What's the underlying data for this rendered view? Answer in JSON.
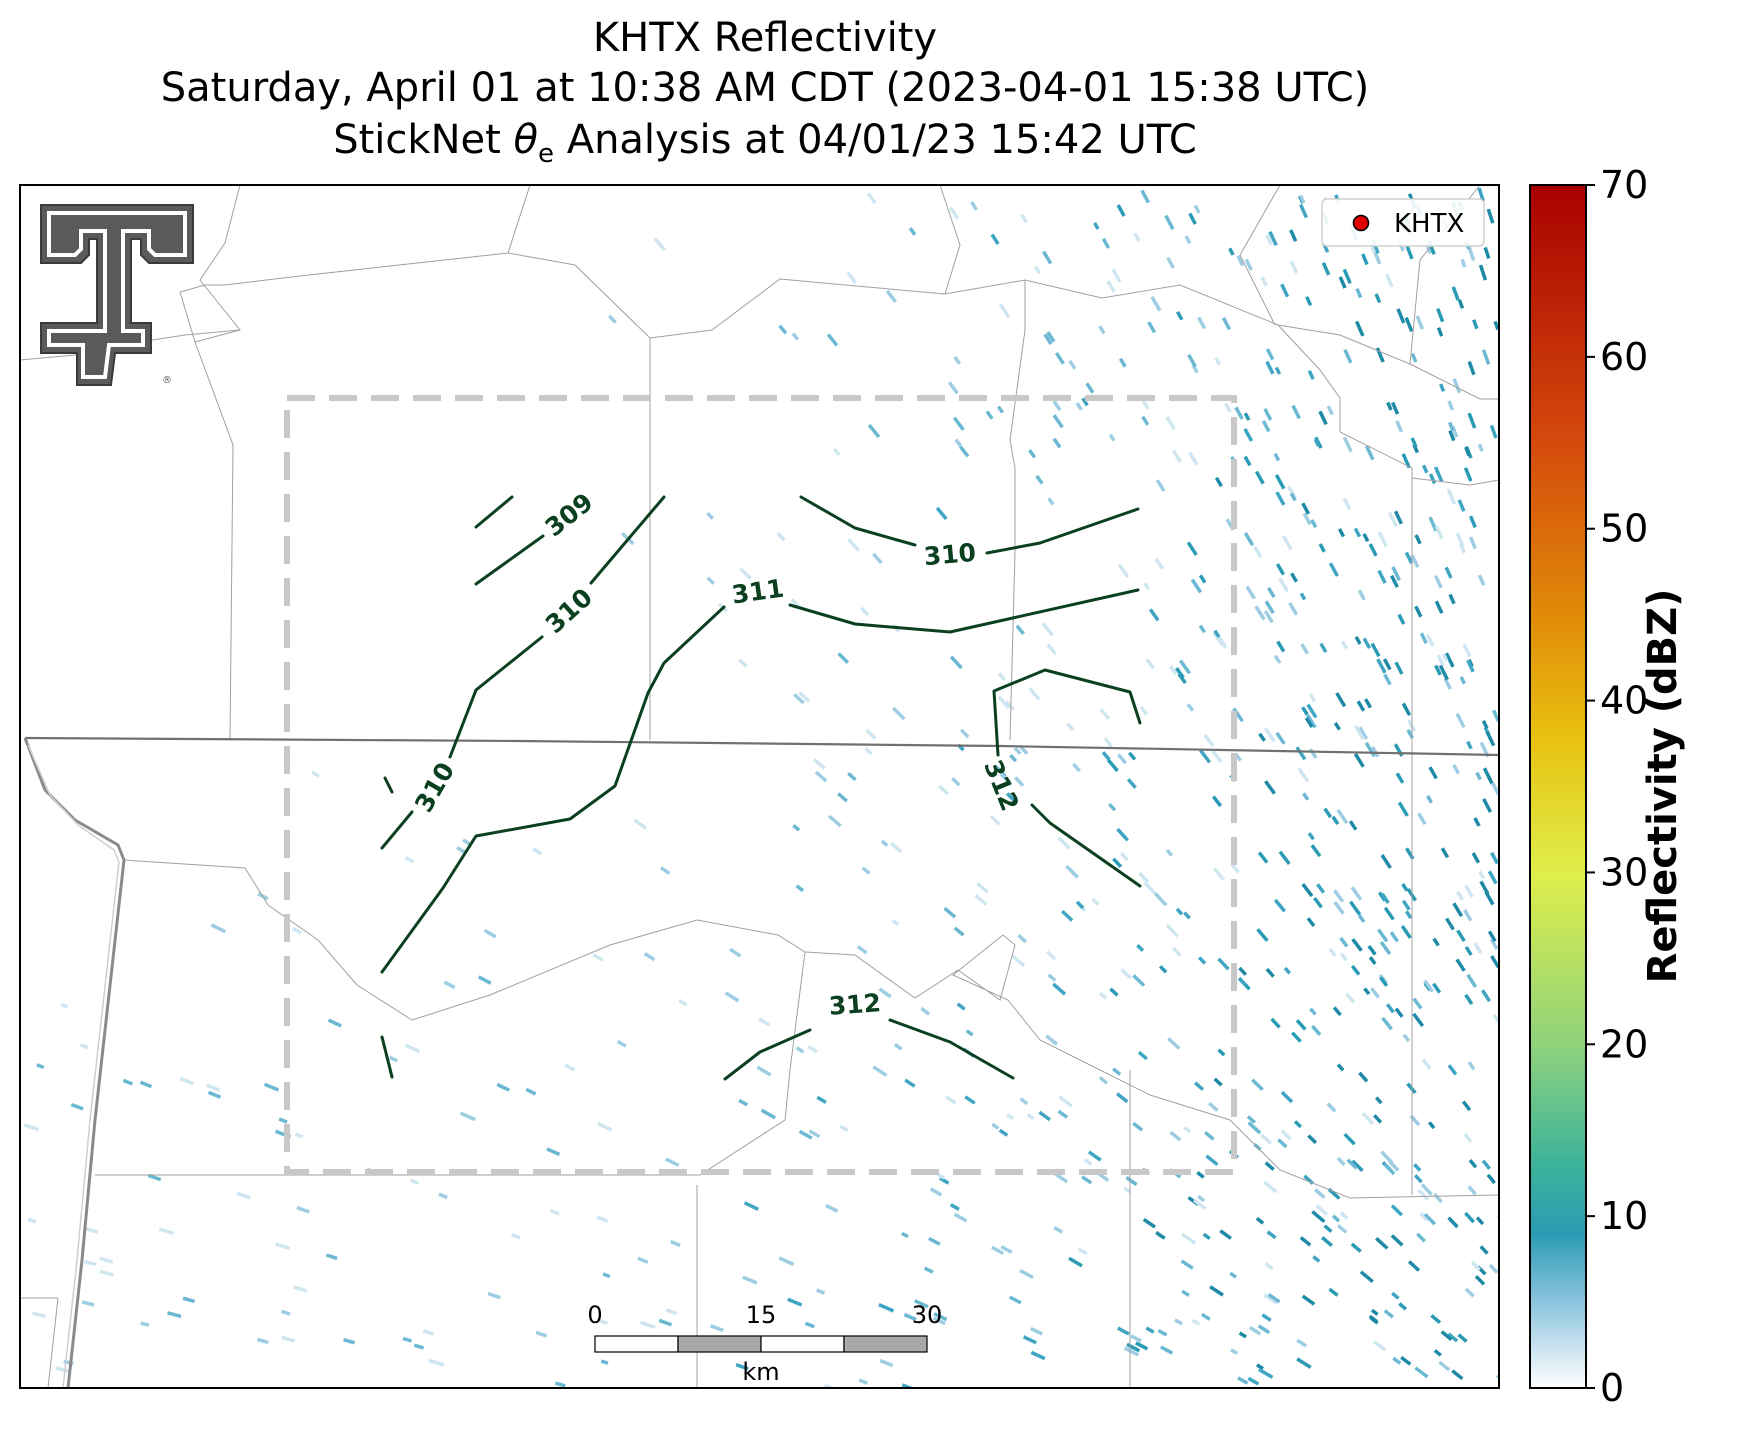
{
  "title": {
    "line1": "KHTX Reflectivity",
    "line2": "Saturday, April 01 at 10:38 AM CDT (2023-04-01 15:38 UTC)",
    "line3_prefix": "StickNet ",
    "line3_symbol": "θ",
    "line3_sub": "e",
    "line3_suffix": " Analysis at 04/01/23 15:42 UTC"
  },
  "legend": {
    "label": "KHTX",
    "marker_color": "#e00000"
  },
  "scalebar": {
    "ticks": [
      "0",
      "15",
      "30"
    ],
    "unit": "km"
  },
  "colorbar": {
    "label": "Reflectivity (dBZ)",
    "ticks": [
      "0",
      "10",
      "20",
      "30",
      "40",
      "50",
      "60",
      "70"
    ],
    "min": 0,
    "max": 70,
    "stops": [
      {
        "v": 0,
        "color": "#ffffff"
      },
      {
        "v": 5,
        "color": "#8cc4de"
      },
      {
        "v": 9,
        "color": "#2a9bb4"
      },
      {
        "v": 13,
        "color": "#3db39a"
      },
      {
        "v": 20,
        "color": "#8fd27a"
      },
      {
        "v": 30,
        "color": "#dfee4a"
      },
      {
        "v": 38,
        "color": "#e8c010"
      },
      {
        "v": 45,
        "color": "#e08a08"
      },
      {
        "v": 55,
        "color": "#d44a0c"
      },
      {
        "v": 70,
        "color": "#a80000"
      }
    ]
  },
  "contours": {
    "color": "#0a4020",
    "labels": [
      "309",
      "310",
      "310",
      "310",
      "311",
      "310",
      "312",
      "312"
    ]
  },
  "colors": {
    "analysis_box": "#c8c8c8",
    "state_border": "#707070",
    "county_border": "#a0a0a0",
    "echo": "#2a9bb4"
  }
}
